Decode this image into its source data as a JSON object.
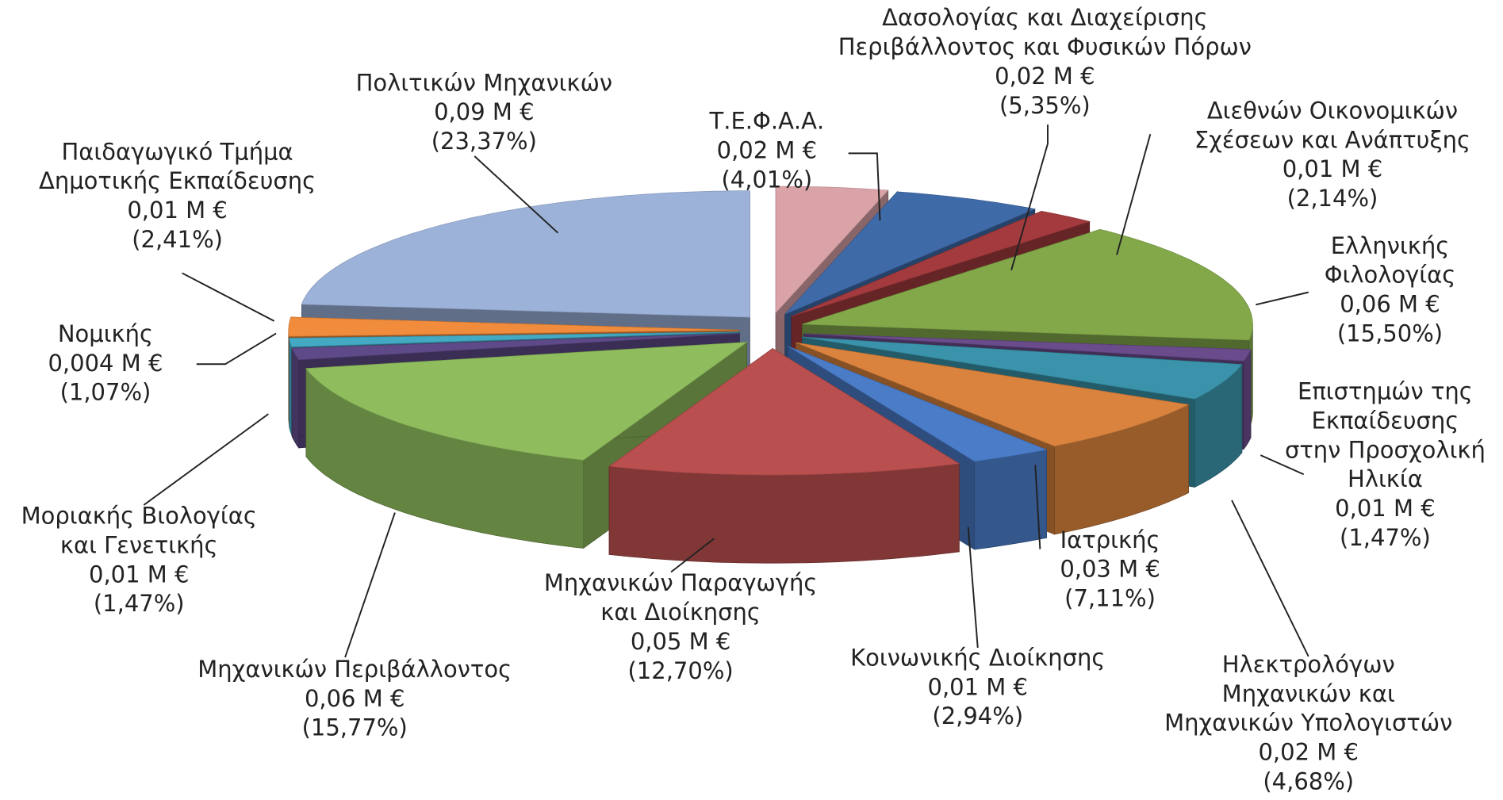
{
  "chart_data": {
    "type": "pie3d",
    "categories": [
      [
        "Τ.Ε.Φ.Α.Α."
      ],
      [
        "Δασολογίας και Διαχείρισης",
        "Περιβάλλοντος και Φυσικών Πόρων"
      ],
      [
        "Διεθνών Οικονομικών",
        "Σχέσεων και Ανάπτυξης"
      ],
      [
        "Ελληνικής",
        "Φιλολογίας"
      ],
      [
        "Επιστημών της",
        "Εκπαίδευσης",
        "στην Προσχολική",
        "Ηλικία"
      ],
      [
        "Ηλεκτρολόγων",
        "Μηχανικών και",
        "Μηχανικών Υπολογιστών"
      ],
      [
        "Ιατρικής"
      ],
      [
        "Κοινωνικής Διοίκησης"
      ],
      [
        "Μηχανικών Παραγωγής",
        "και Διοίκησης"
      ],
      [
        "Μηχανικών Περιβάλλοντος"
      ],
      [
        "Μοριακής Βιολογίας",
        "και Γενετικής"
      ],
      [
        "Νομικής"
      ],
      [
        "Παιδαγωγικό Τμήμα",
        "Δημοτικής Εκπαίδευσης"
      ],
      [
        "Πολιτικών Μηχανικών"
      ]
    ],
    "values": [
      4.01,
      5.35,
      2.14,
      15.5,
      1.47,
      4.68,
      7.11,
      2.94,
      12.7,
      15.77,
      1.47,
      1.07,
      2.41,
      23.37
    ],
    "value_labels": [
      "(4,01%)",
      "(5,35%)",
      "(2,14%)",
      "(15,50%)",
      "(1,47%)",
      "(4,68%)",
      "(7,11%)",
      "(2,94%)",
      "(12,70%)",
      "(15,77%)",
      "(1,47%)",
      "(1,07%)",
      "(2,41%)",
      "(23,37%)"
    ],
    "amounts": [
      0.02,
      0.02,
      0.01,
      0.06,
      0.01,
      0.02,
      0.03,
      0.01,
      0.05,
      0.06,
      0.01,
      0.004,
      0.01,
      0.09
    ],
    "amount_labels": [
      "0,02 Μ €",
      "0,02 Μ €",
      "0,01 Μ €",
      "0,06 Μ €",
      "0,01 Μ €",
      "0,02 Μ €",
      "0,03 Μ €",
      "0,01 Μ €",
      "0,05 Μ €",
      "0,06 Μ €",
      "0,01 Μ €",
      "0,004 Μ €",
      "0,01 Μ €",
      "0,09 Μ €"
    ],
    "colors": [
      "#d9a3a8",
      "#3f6aa8",
      "#a33a3d",
      "#82a84a",
      "#6a4c8c",
      "#3a93aa",
      "#d9833e",
      "#4a7cc8",
      "#b94f4f",
      "#8fbd5e",
      "#5e4a88",
      "#44aac4",
      "#f08c3c",
      "#9db2d9"
    ]
  }
}
